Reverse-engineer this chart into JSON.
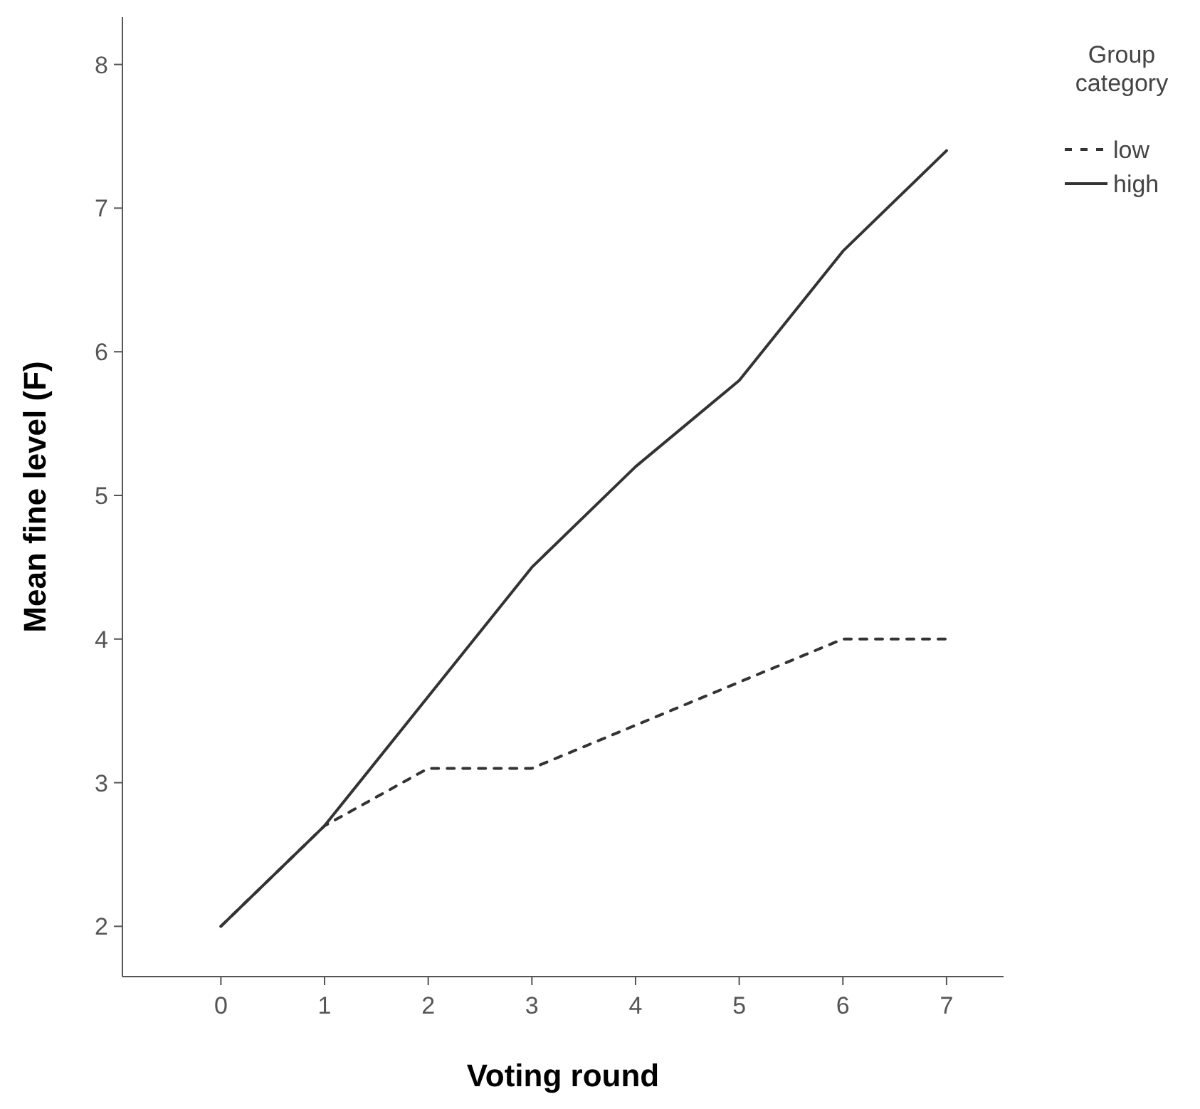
{
  "chart_data": {
    "type": "line",
    "xlabel": "Voting round",
    "ylabel": "Mean fine level (F)",
    "legend_title": "Group category",
    "legend": "top right",
    "x": [
      0,
      1,
      2,
      3,
      4,
      5,
      6,
      7
    ],
    "series": [
      {
        "name": "low",
        "color": "#333333",
        "line_style": "dashed",
        "values": [
          2,
          2.7,
          3.1,
          3.1,
          3.4,
          3.7,
          4.0,
          4.0
        ]
      },
      {
        "name": "high",
        "color": "#333333",
        "line_style": "solid",
        "values": [
          2,
          2.7,
          3.6,
          4.5,
          5.2,
          5.8,
          6.7,
          7.4
        ]
      }
    ],
    "xlim": [
      -0.95,
      7.55
    ],
    "ylim": [
      1.65,
      8.33
    ],
    "xticks": [
      0,
      1,
      2,
      3,
      4,
      5,
      6,
      7
    ],
    "yticks": [
      2,
      3,
      4,
      5,
      6,
      7,
      8
    ],
    "grid": false,
    "marker": "none"
  }
}
